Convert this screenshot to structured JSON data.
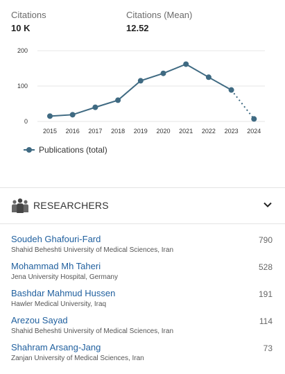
{
  "stats": {
    "citations_label": "Citations",
    "citations_value": "10 K",
    "citations_mean_label": "Citations (Mean)",
    "citations_mean_value": "12.52"
  },
  "colors": {
    "series": "#3f6a82",
    "link": "#1f5f9e",
    "grid": "#e6e6e6"
  },
  "chart_data": {
    "type": "line",
    "title": "",
    "xlabel": "",
    "ylabel": "",
    "x": [
      "2015",
      "2016",
      "2017",
      "2018",
      "2019",
      "2020",
      "2021",
      "2022",
      "2023",
      "2024"
    ],
    "y_ticks": [
      "0",
      "100",
      "200"
    ],
    "ylim": [
      0,
      210
    ],
    "grid": true,
    "legend_position": "bottom-left",
    "series": [
      {
        "name": "Publications (total)",
        "values": [
          15,
          19,
          40,
          60,
          115,
          136,
          162,
          125,
          89,
          7
        ],
        "dotted_last_segment": true
      }
    ]
  },
  "section": {
    "icon": "people-icon",
    "title": "RESEARCHERS",
    "toggle_icon": "chevron-down-icon"
  },
  "researchers": [
    {
      "name": "Soudeh Ghafouri-Fard",
      "affiliation": "Shahid Beheshti University of Medical Sciences, Iran",
      "count": "790"
    },
    {
      "name": "Mohammad Mh Taheri",
      "affiliation": "Jena University Hospital, Germany",
      "count": "528"
    },
    {
      "name": "Bashdar Mahmud Hussen",
      "affiliation": "Hawler Medical University, Iraq",
      "count": "191"
    },
    {
      "name": "Arezou Sayad",
      "affiliation": "Shahid Beheshti University of Medical Sciences, Iran",
      "count": "114"
    },
    {
      "name": "Shahram Arsang-Jang",
      "affiliation": "Zanjan University of Medical Sciences, Iran",
      "count": "73"
    }
  ]
}
